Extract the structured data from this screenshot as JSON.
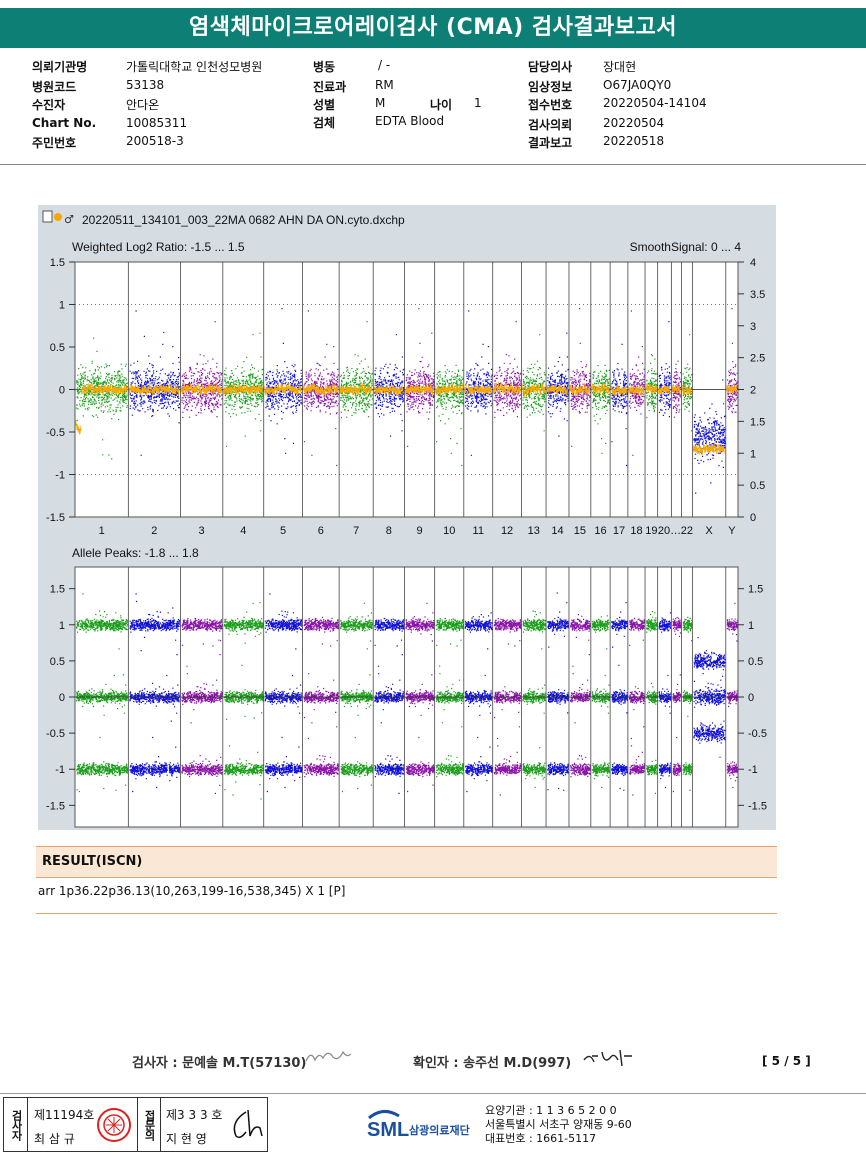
{
  "title": "염색체마이크로어레이검사 (CMA) 검사결과보고서",
  "info": {
    "col1": [
      {
        "label": "의뢰기관명",
        "value": "가톨릭대학교 인천성모병원"
      },
      {
        "label": "병원코드",
        "value": "53138"
      },
      {
        "label": "수진자",
        "value": "안다온"
      },
      {
        "label": "Chart No.",
        "value": "10085311"
      },
      {
        "label": "주민번호",
        "value": "200518-3"
      }
    ],
    "col2": [
      {
        "label": "병동",
        "value": "/ -"
      },
      {
        "label": "진료과",
        "value": "RM"
      },
      {
        "label": "성별",
        "value": "M"
      },
      {
        "label": "검체",
        "value": "EDTA Blood"
      }
    ],
    "age": {
      "label": "나이",
      "value": "1"
    },
    "col3": [
      {
        "label": "담당의사",
        "value": "장대현"
      },
      {
        "label": "임상정보",
        "value": "O67JA0QY0"
      },
      {
        "label": "접수번호",
        "value": "20220504-14104"
      },
      {
        "label": "검사의뢰",
        "value": "20220504"
      },
      {
        "label": "결과보고",
        "value": "20220518"
      }
    ]
  },
  "chart_data": {
    "type": "scatter",
    "file_name": "20220511_134101_003_22MA 0682 AHN DA ON.cyto.dxchp",
    "top_panel": {
      "left_label": "Weighted Log2 Ratio: -1.5 ... 1.5",
      "right_label": "SmoothSignal: 0 ... 4",
      "ylim": [
        -1.5,
        1.5
      ],
      "y_ticks": [
        "1.5",
        "1",
        "0.5",
        "0",
        "-0.5",
        "-1",
        "-1.5"
      ],
      "right_ylim": [
        0,
        4
      ],
      "right_ticks": [
        "4",
        "3.5",
        "3",
        "2.5",
        "2",
        "1.5",
        "1",
        "0.5",
        "0"
      ],
      "x_categories": [
        "1",
        "2",
        "3",
        "4",
        "5",
        "6",
        "7",
        "8",
        "9",
        "10",
        "11",
        "12",
        "13",
        "14",
        "15",
        "16",
        "17",
        "18",
        "19",
        "20…",
        "22",
        "X",
        "Y"
      ],
      "grid": true
    },
    "bottom_panel": {
      "left_label": "Allele Peaks: -1.8 ... 1.8",
      "ylim": [
        -1.8,
        1.8
      ],
      "y_ticks": [
        "1.5",
        "1",
        "0.5",
        "0",
        "-0.5",
        "-1",
        "-1.5"
      ],
      "right_ticks": [
        "1.5",
        "1",
        "0.5",
        "0",
        "-0.5",
        "-1",
        "-1.5"
      ],
      "peak_levels": [
        1.0,
        0,
        -1.0
      ]
    },
    "colors": {
      "green": "#1a9e1a",
      "blue": "#1010d8",
      "purple": "#8a12a8",
      "smooth": "#f5a800"
    }
  },
  "result": {
    "heading": "RESULT(ISCN)",
    "text": "arr 1p36.22p36.13(10,263,199-16,538,345) X 1 [P]"
  },
  "signatures": {
    "tester": "검사자 : 문예솔 M.T(57130)",
    "confirmer": "확인자 : 송주선 M.D(997)",
    "page": "[ 5 / 5 ]"
  },
  "footer": {
    "box_label1": "검사자",
    "license1": "제11194호",
    "name1": "최 삼 규",
    "box_label2": "접문의",
    "license2": "제3 3 3 호",
    "name2": "지 현 영",
    "logo_text": "SML",
    "company": "삼광의료재단",
    "line1": "요양기관 : 1 1 3 6 5 2 0 0",
    "line2": "서울특별시 서초구 양재동 9-60",
    "line3": "대표번호 : 1661-5117"
  }
}
